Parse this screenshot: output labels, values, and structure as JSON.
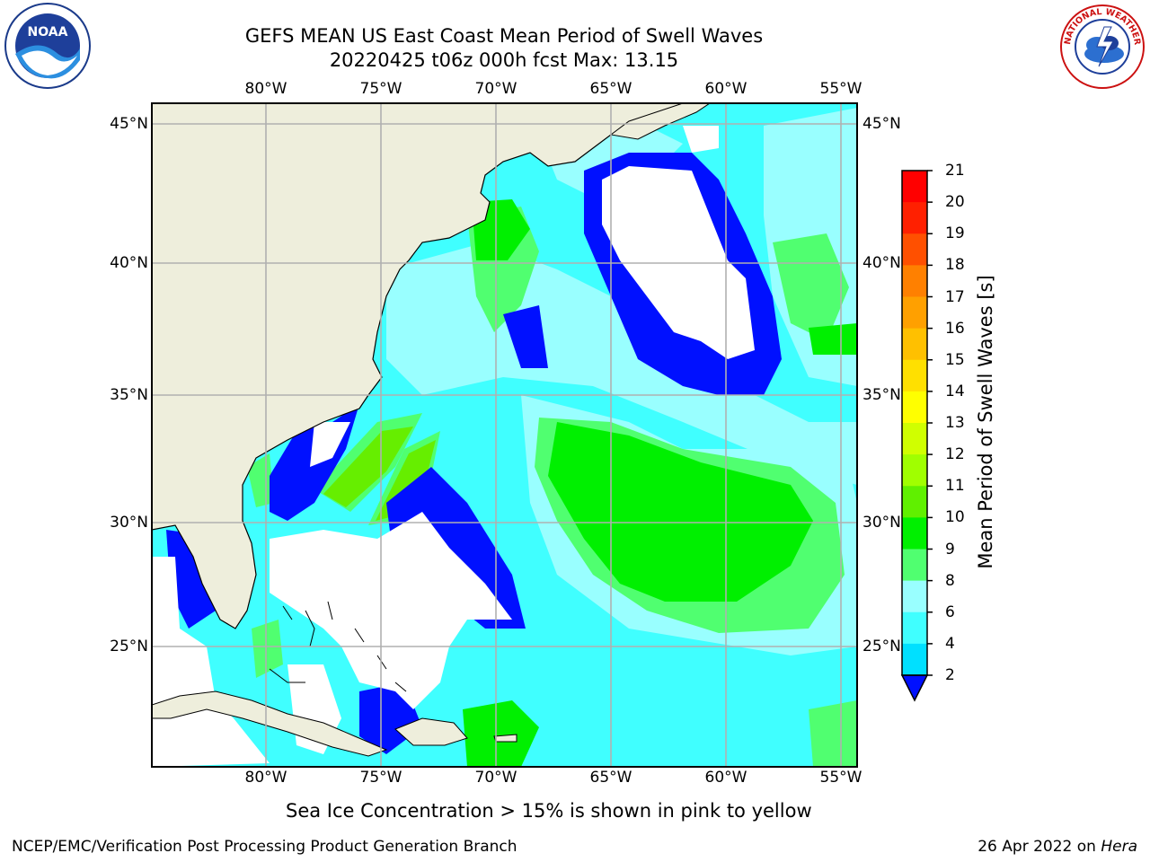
{
  "title_line1": "GEFS MEAN US East Coast Mean Period of Swell Waves",
  "title_line2": "20220425 t06z 000h fcst   Max: 13.15",
  "lon_labels": [
    "80°W",
    "75°W",
    "70°W",
    "65°W",
    "60°W",
    "55°W"
  ],
  "lat_labels": [
    "45°N",
    "40°N",
    "35°N",
    "30°N",
    "25°N"
  ],
  "colorbar": {
    "label": "Mean Period of Swell Waves [s]",
    "ticks": [
      "21",
      "20",
      "19",
      "18",
      "17",
      "16",
      "15",
      "14",
      "13",
      "12",
      "11",
      "10",
      "9",
      "8",
      "6",
      "4",
      "2"
    ],
    "colors": [
      "#0010ff",
      "#0080ff",
      "#00e0ff",
      "#40ffff",
      "#99ffff",
      "#50ff70",
      "#00f000",
      "#60f000",
      "#a0ff00",
      "#d0ff00",
      "#ffff00",
      "#ffe000",
      "#ffc000",
      "#ffa000",
      "#ff8000",
      "#ff5000",
      "#ff2000",
      "#ff0000"
    ]
  },
  "map": {
    "land_color": "#eeeedc",
    "ocean_base_color": "#40ffff",
    "grid_color": "#b0b0b0"
  },
  "footnote": "Sea Ice Concentration > 15% is shown in pink to yellow",
  "credit_left": "NCEP/EMC/Verification Post Processing Product Generation Branch",
  "credit_date": "26 Apr 2022 on",
  "credit_machine": "Hera",
  "logos": {
    "left_text": "NOAA",
    "right_text": "NATIONAL WEATHER SERVICE"
  }
}
